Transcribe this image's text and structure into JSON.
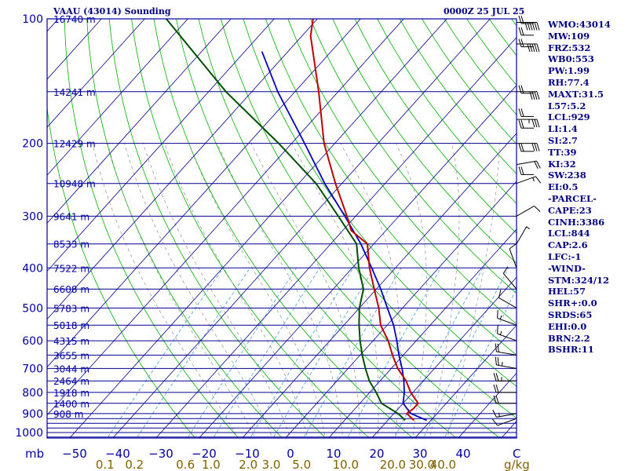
{
  "header": {
    "title": "VAAU (43014) Sounding",
    "time": "0000Z 25 JUL 25"
  },
  "colors": {
    "frame": "#0000a0",
    "isobar": "#000090",
    "isotherm": "#000090",
    "dry_adiabat": "#00b000",
    "moist_adiabat": "#909090",
    "mixing_ratio": "#40a0e0",
    "temperature": "#c00000",
    "dewpoint": "#005000",
    "parcel": "#0000c0",
    "index_text": "#000080",
    "mixing_ratio_label": "#806000",
    "wind": "#000000"
  },
  "chart_data": {
    "type": "skew-t log-p sounding",
    "y_axis": {
      "scale": "log",
      "unit_label": "mb",
      "pressure_ticks": [
        100,
        200,
        300,
        400,
        500,
        600,
        700,
        800,
        900,
        1000
      ],
      "ylim": [
        1050,
        100
      ]
    },
    "x_axis": {
      "temperature_ticks": [
        -50,
        -40,
        -30,
        -20,
        -10,
        0,
        10,
        20,
        30,
        40
      ],
      "temperature_labels": [
        "−50",
        "−40",
        "−30",
        "−20",
        "−10",
        "0",
        "10",
        "20",
        "30",
        "40"
      ],
      "xlim": [
        -50,
        50
      ],
      "right_label": "C"
    },
    "mixing_ratio_axis": {
      "labels": [
        "0.1",
        "0.2",
        "0.6",
        "1.0",
        "2.0",
        "3.0",
        "5.0",
        "10.0",
        "20.0",
        "30.0",
        "40.0"
      ],
      "values": [
        0.1,
        0.2,
        0.6,
        1.0,
        2.0,
        3.0,
        5.0,
        10.0,
        20.0,
        30.0,
        40.0
      ],
      "unit_label": "g/kg"
    },
    "height_labels": [
      {
        "p": 100,
        "label": "16740 m"
      },
      {
        "p": 150,
        "label": "14241 m"
      },
      {
        "p": 200,
        "label": "12429 m"
      },
      {
        "p": 250,
        "label": "10948 m"
      },
      {
        "p": 300,
        "label": "9641 m"
      },
      {
        "p": 350,
        "label": "8533 m"
      },
      {
        "p": 400,
        "label": "7522 m"
      },
      {
        "p": 450,
        "label": "6608 m"
      },
      {
        "p": 500,
        "label": "5783 m"
      },
      {
        "p": 550,
        "label": "5018 m"
      },
      {
        "p": 600,
        "label": "4315 m"
      },
      {
        "p": 650,
        "label": "3655 m"
      },
      {
        "p": 700,
        "label": "3044 m"
      },
      {
        "p": 750,
        "label": "2464 m"
      },
      {
        "p": 800,
        "label": "1918 m"
      },
      {
        "p": 850,
        "label": "1400 m"
      },
      {
        "p": 900,
        "label": "908 m"
      }
    ],
    "extra_isobars": [
      925,
      950,
      975,
      1000,
      1025
    ],
    "temperature_profile": [
      {
        "p": 934,
        "t": 26
      },
      {
        "p": 900,
        "t": 23
      },
      {
        "p": 875,
        "t": 23.5
      },
      {
        "p": 850,
        "t": 23.5
      },
      {
        "p": 800,
        "t": 19.5
      },
      {
        "p": 750,
        "t": 16
      },
      {
        "p": 700,
        "t": 11.5
      },
      {
        "p": 650,
        "t": 7.5
      },
      {
        "p": 600,
        "t": 3.5
      },
      {
        "p": 550,
        "t": -1.5
      },
      {
        "p": 500,
        "t": -5.5
      },
      {
        "p": 450,
        "t": -10.5
      },
      {
        "p": 400,
        "t": -16
      },
      {
        "p": 350,
        "t": -21.5
      },
      {
        "p": 325,
        "t": -28
      },
      {
        "p": 300,
        "t": -32
      },
      {
        "p": 250,
        "t": -41.5
      },
      {
        "p": 200,
        "t": -52.5
      },
      {
        "p": 150,
        "t": -64.5
      },
      {
        "p": 110,
        "t": -78
      },
      {
        "p": 100,
        "t": -81
      }
    ],
    "dewpoint_profile": [
      {
        "p": 934,
        "t": 24
      },
      {
        "p": 900,
        "t": 21
      },
      {
        "p": 850,
        "t": 15
      },
      {
        "p": 800,
        "t": 11.5
      },
      {
        "p": 750,
        "t": 7.5
      },
      {
        "p": 700,
        "t": 4
      },
      {
        "p": 650,
        "t": 0.5
      },
      {
        "p": 600,
        "t": -3
      },
      {
        "p": 550,
        "t": -6.5
      },
      {
        "p": 500,
        "t": -10
      },
      {
        "p": 450,
        "t": -13
      },
      {
        "p": 400,
        "t": -18.5
      },
      {
        "p": 350,
        "t": -24
      },
      {
        "p": 300,
        "t": -34
      },
      {
        "p": 250,
        "t": -46
      },
      {
        "p": 200,
        "t": -63
      },
      {
        "p": 150,
        "t": -86
      },
      {
        "p": 100,
        "t": -115
      }
    ],
    "parcel_profile": [
      {
        "p": 934,
        "t": 29
      },
      {
        "p": 900,
        "t": 24
      },
      {
        "p": 875,
        "t": 22
      },
      {
        "p": 850,
        "t": 20
      },
      {
        "p": 800,
        "t": 18
      },
      {
        "p": 750,
        "t": 15.5
      },
      {
        "p": 700,
        "t": 12.5
      },
      {
        "p": 650,
        "t": 9
      },
      {
        "p": 600,
        "t": 5.5
      },
      {
        "p": 550,
        "t": 1.5
      },
      {
        "p": 500,
        "t": -3.5
      },
      {
        "p": 450,
        "t": -9
      },
      {
        "p": 400,
        "t": -15.5
      },
      {
        "p": 350,
        "t": -23
      },
      {
        "p": 300,
        "t": -32.5
      },
      {
        "p": 250,
        "t": -44
      },
      {
        "p": 200,
        "t": -57
      },
      {
        "p": 150,
        "t": -74
      },
      {
        "p": 120,
        "t": -86
      }
    ],
    "wind_barbs": [
      {
        "p": 102,
        "dir": 90,
        "kt": 60
      },
      {
        "p": 115,
        "dir": 90,
        "kt": 50
      },
      {
        "p": 150,
        "dir": 90,
        "kt": 40
      },
      {
        "p": 175,
        "dir": 90,
        "kt": 35
      },
      {
        "p": 200,
        "dir": 90,
        "kt": 30
      },
      {
        "p": 225,
        "dir": 80,
        "kt": 20
      },
      {
        "p": 250,
        "dir": 70,
        "kt": 15
      },
      {
        "p": 300,
        "dir": 60,
        "kt": 10
      },
      {
        "p": 350,
        "dir": 30,
        "kt": 5
      },
      {
        "p": 400,
        "dir": 340,
        "kt": 10
      },
      {
        "p": 450,
        "dir": 320,
        "kt": 10
      },
      {
        "p": 500,
        "dir": 300,
        "kt": 10
      },
      {
        "p": 550,
        "dir": 290,
        "kt": 15
      },
      {
        "p": 600,
        "dir": 290,
        "kt": 15
      },
      {
        "p": 650,
        "dir": 280,
        "kt": 20
      },
      {
        "p": 700,
        "dir": 280,
        "kt": 25
      },
      {
        "p": 750,
        "dir": 270,
        "kt": 25
      },
      {
        "p": 800,
        "dir": 270,
        "kt": 20
      },
      {
        "p": 850,
        "dir": 270,
        "kt": 20
      },
      {
        "p": 900,
        "dir": 260,
        "kt": 15
      },
      {
        "p": 925,
        "dir": 250,
        "kt": 10
      }
    ]
  },
  "indices": [
    {
      "text": "WMO:43014",
      "barb": true
    },
    {
      "text": "MW:109",
      "barb": true
    },
    {
      "text": "FRZ:532",
      "barb": true
    },
    {
      "text": "WB0:553",
      "barb": false
    },
    {
      "text": "PW:1.99",
      "barb": false
    },
    {
      "text": "RH:77.4",
      "barb": false
    },
    {
      "text": "MAXT:31.5",
      "barb": true
    },
    {
      "text": "L57:5.2",
      "barb": false
    },
    {
      "text": "LCL:929",
      "barb": true
    },
    {
      "text": "LI:1.4",
      "barb": true
    },
    {
      "text": "SI:2.7",
      "barb": false
    },
    {
      "text": "TT:39",
      "barb": true
    },
    {
      "text": "KI:32",
      "barb": false
    },
    {
      "text": "SW:238",
      "barb": true
    },
    {
      "text": "EI:0.5",
      "barb": false
    },
    {
      "text": "-PARCEL-",
      "barb": false
    },
    {
      "text": "CAPE:23",
      "barb": false
    },
    {
      "text": "CINH:3386",
      "barb": false
    },
    {
      "text": "LCL:844",
      "barb": false
    },
    {
      "text": "CAP:2.6",
      "barb": false
    },
    {
      "text": "LFC:-1",
      "barb": false
    },
    {
      "text": "-WIND-",
      "barb": false
    },
    {
      "text": "STM:324/12",
      "barb": false
    },
    {
      "text": "HEL:57",
      "barb": false
    },
    {
      "text": "SHR+:0.0",
      "barb": false
    },
    {
      "text": "SRDS:65",
      "barb": false
    },
    {
      "text": "EHI:0.0",
      "barb": false
    },
    {
      "text": "BRN:2.2",
      "barb": false
    },
    {
      "text": "BSHR:11",
      "barb": false
    }
  ]
}
